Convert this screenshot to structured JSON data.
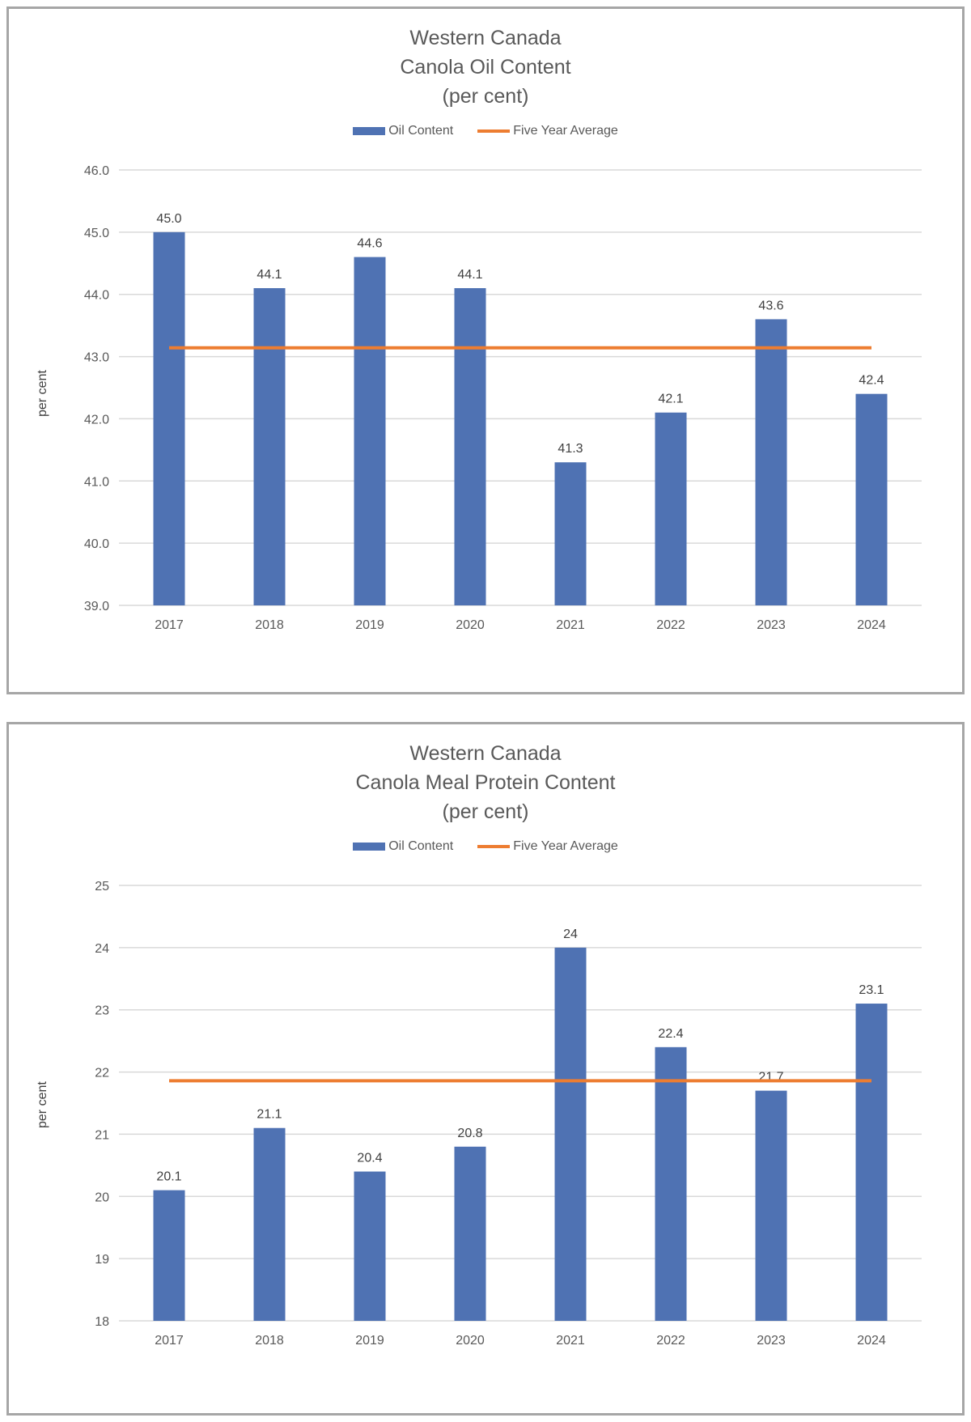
{
  "chart_data": [
    {
      "type": "bar",
      "title_lines": [
        "Western Canada",
        "Canola Oil Content",
        "(per cent)"
      ],
      "categories": [
        "2017",
        "2018",
        "2019",
        "2020",
        "2021",
        "2022",
        "2023",
        "2024"
      ],
      "series": [
        {
          "name": "Oil Content",
          "type": "bar",
          "color": "#4f72b3",
          "values": [
            45.0,
            44.1,
            44.6,
            44.1,
            41.3,
            42.1,
            43.6,
            42.4
          ],
          "labels": [
            "45.0",
            "44.1",
            "44.6",
            "44.1",
            "41.3",
            "42.1",
            "43.6",
            "42.4"
          ]
        },
        {
          "name": "Five Year Average",
          "type": "line",
          "color": "#ed7d31",
          "value": 43.14
        }
      ],
      "ylabel": "per cent",
      "ylim": [
        39,
        46
      ],
      "yticks": [
        "39.0",
        "40.0",
        "41.0",
        "42.0",
        "43.0",
        "44.0",
        "45.0",
        "46.0"
      ],
      "grid": true,
      "legend_position": "top"
    },
    {
      "type": "bar",
      "title_lines": [
        "Western Canada",
        "Canola Meal Protein Content",
        "(per cent)"
      ],
      "categories": [
        "2017",
        "2018",
        "2019",
        "2020",
        "2021",
        "2022",
        "2023",
        "2024"
      ],
      "series": [
        {
          "name": "Oil Content",
          "type": "bar",
          "color": "#4f72b3",
          "values": [
            20.1,
            21.1,
            20.4,
            20.8,
            24,
            22.4,
            21.7,
            23.1
          ],
          "labels": [
            "20.1",
            "21.1",
            "20.4",
            "20.8",
            "24",
            "22.4",
            "21.7",
            "23.1"
          ]
        },
        {
          "name": "Five Year Average",
          "type": "line",
          "color": "#ed7d31",
          "value": 21.86
        }
      ],
      "ylabel": "per cent",
      "ylim": [
        18,
        25
      ],
      "yticks": [
        "18",
        "19",
        "20",
        "21",
        "22",
        "23",
        "24",
        "25"
      ],
      "grid": true,
      "legend_position": "top"
    }
  ]
}
